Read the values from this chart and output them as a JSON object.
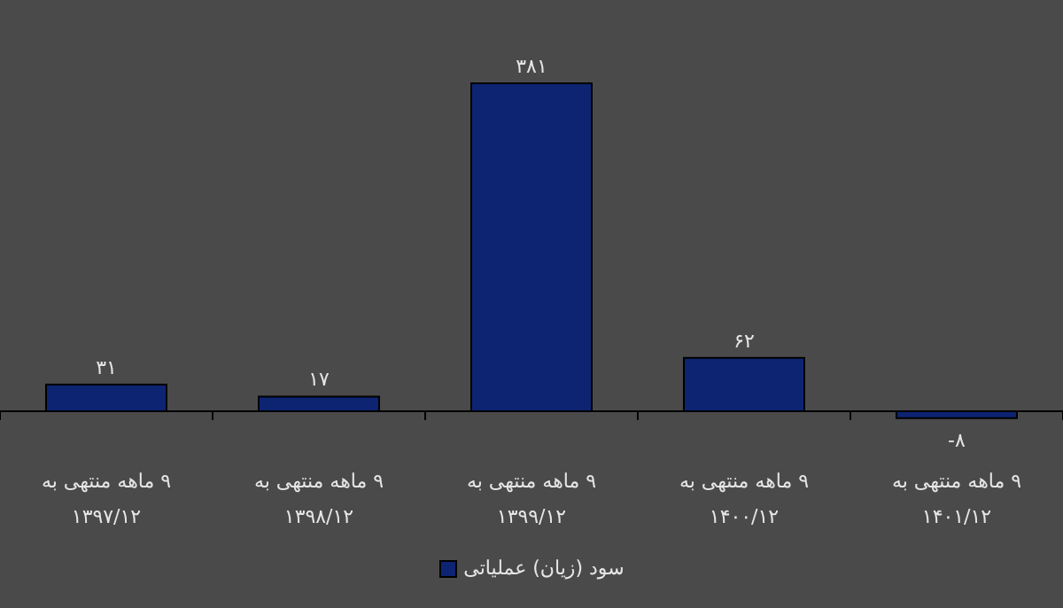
{
  "chart_data": {
    "type": "bar",
    "categories": [
      "۹ ماهه منتهی به ۱۳۹۷/۱۲",
      "۹ ماهه منتهی به ۱۳۹۸/۱۲",
      "۹ ماهه منتهی به ۱۳۹۹/۱۲",
      "۹ ماهه منتهی به ۱۴۰۰/۱۲",
      "۹ ماهه منتهی به ۱۴۰۱/۱۲"
    ],
    "series": [
      {
        "name": "سود (زیان) عملیاتی",
        "color": "#0d2473",
        "values": [
          31,
          17,
          381,
          62,
          -8
        ],
        "value_labels": [
          "۳۱",
          "۱۷",
          "۳۸۱",
          "۶۲",
          "-۸"
        ]
      }
    ],
    "legend": "bottom"
  }
}
